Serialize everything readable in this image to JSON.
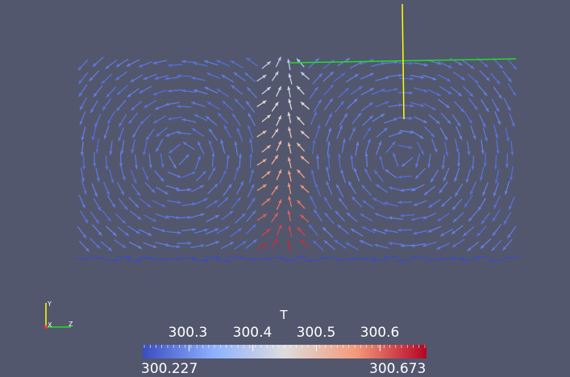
{
  "scene": {
    "background": "#52576e",
    "field": "velocity-glyphs",
    "colored_by": "T",
    "cursor_color": "#ffff00",
    "slice_line_color": "#22dd22"
  },
  "colorbar": {
    "title": "T",
    "min_label": "300.227",
    "max_label": "300.673",
    "min": 300.227,
    "max": 300.673,
    "ticks": [
      {
        "value": 300.3,
        "label": "300.3"
      },
      {
        "value": 300.4,
        "label": "300.4"
      },
      {
        "value": 300.5,
        "label": "300.5"
      },
      {
        "value": 300.6,
        "label": "300.6"
      }
    ],
    "colormap": [
      "#3b4cc0",
      "#8db0fe",
      "#dddddd",
      "#f49a7b",
      "#b40426"
    ]
  },
  "axes": {
    "y_label": "Y",
    "z_label": "Z",
    "x_label": "X",
    "y_color": "#ffff00",
    "z_color": "#22dd22",
    "x_color": "#ff3333"
  }
}
